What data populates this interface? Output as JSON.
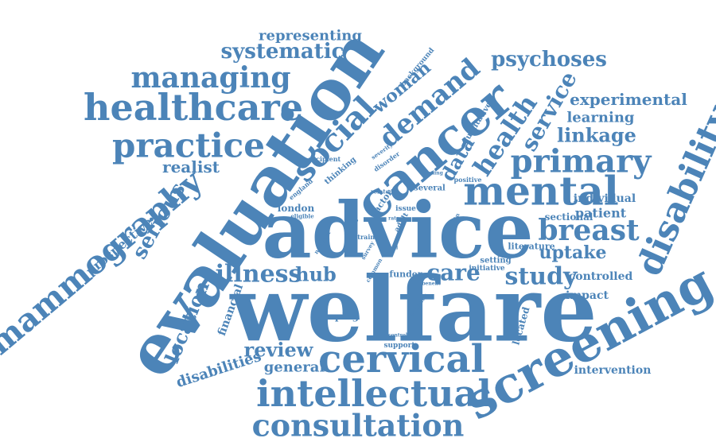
{
  "colors": {
    "word": "#4c84b8",
    "background": "#ffffff"
  },
  "words": [
    "welfare",
    "advice",
    "evaluation",
    "screening",
    "cancer",
    "mental",
    "intellectual",
    "consultation",
    "cervical",
    "mammography",
    "healthcare",
    "practice",
    "managing",
    "disability",
    "primary",
    "social",
    "breast",
    "illness",
    "hub",
    "study",
    "care",
    "review",
    "demand",
    "health",
    "service",
    "data",
    "psychoses",
    "systematic",
    "representing",
    "woman",
    "experimental",
    "learning",
    "linkage",
    "serious",
    "realist",
    "prospective",
    "location",
    "disabilities",
    "general",
    "financial",
    "uptake",
    "patient",
    "individual",
    "sectional",
    "controlled",
    "impact",
    "intervention",
    "scoping",
    "located",
    "literature",
    "setting",
    "initiative",
    "funder",
    "support",
    "london",
    "qualitative",
    "background",
    "recipient",
    "thinking",
    "severity",
    "disorder",
    "england",
    "eligible",
    "national",
    "related",
    "factor",
    "several",
    "positive",
    "finding",
    "issue",
    "adult",
    "cross",
    "strain",
    "survey",
    "common",
    "rate",
    "odd",
    "domain",
    "benefit",
    "reduction",
    "control"
  ]
}
